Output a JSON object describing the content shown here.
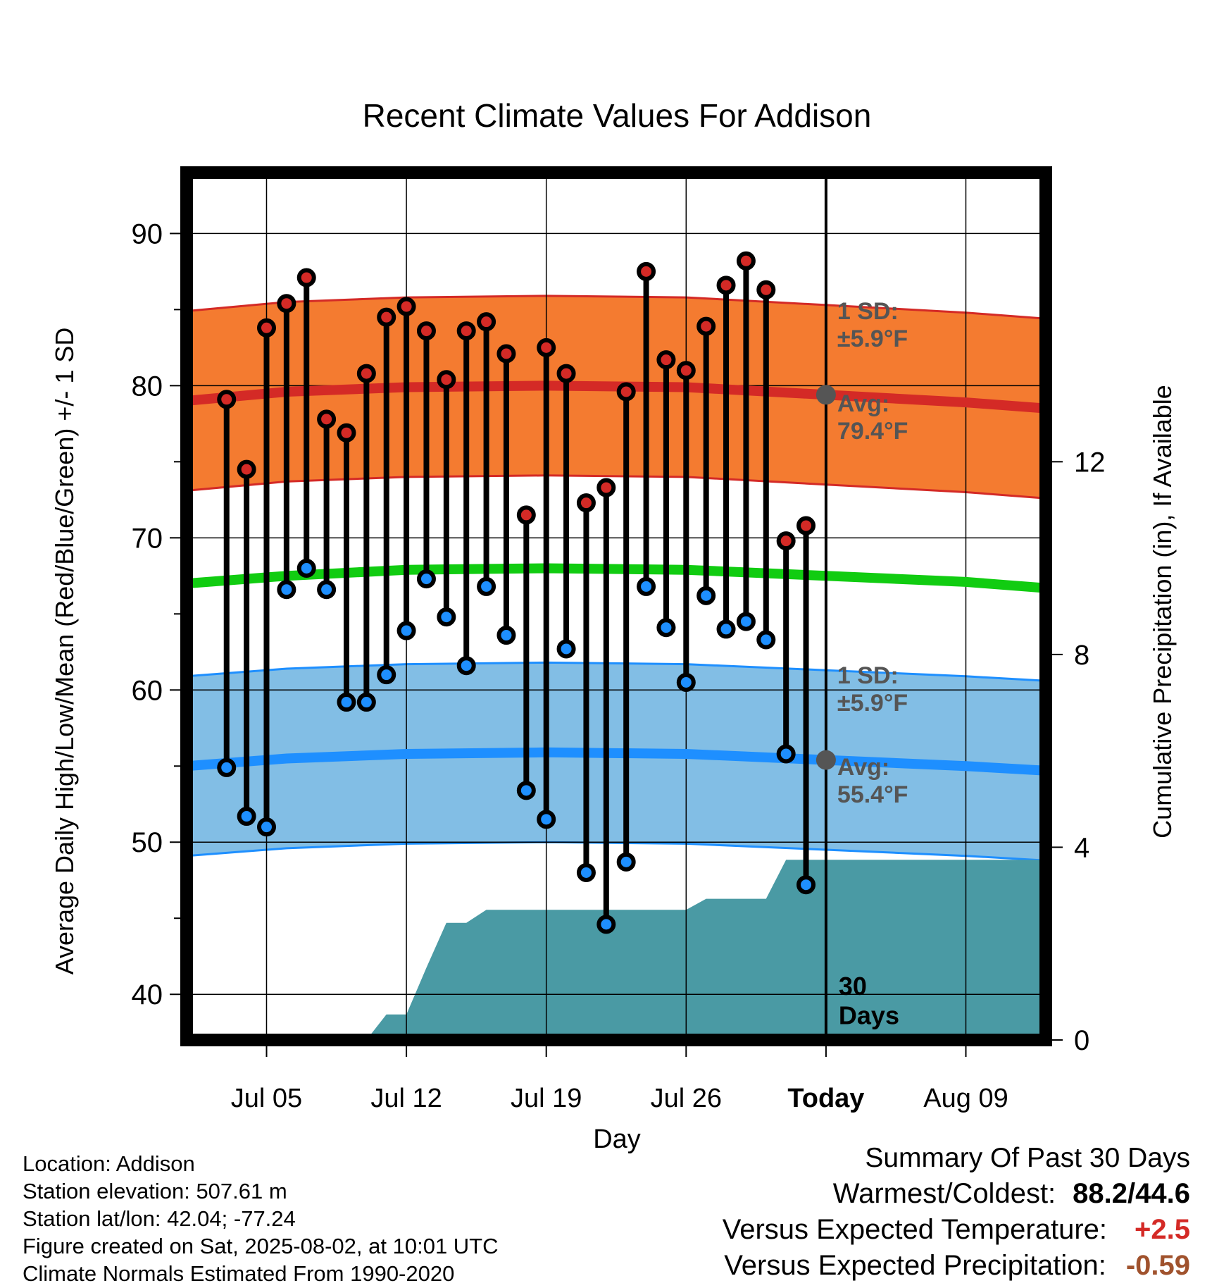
{
  "chart_data": {
    "type": "line",
    "title": "Recent Climate Values For Addison",
    "xlabel": "Day",
    "ylabel": "Average Daily High/Low/Mean (Red/Blue/Green) +/- 1 SD",
    "y2label": "Cumulative Precipitation (in), If Available",
    "ylim": [
      37,
      94
    ],
    "y2lim": [
      0,
      18
    ],
    "yticks": [
      40,
      50,
      60,
      70,
      80,
      90
    ],
    "y2ticks": [
      0,
      4,
      8,
      12
    ],
    "xlim": [
      "2025-07-01",
      "2025-08-13"
    ],
    "xticks": [
      {
        "date": "2025-07-05",
        "label": "Jul 05"
      },
      {
        "date": "2025-07-12",
        "label": "Jul 12"
      },
      {
        "date": "2025-07-19",
        "label": "Jul 19"
      },
      {
        "date": "2025-07-26",
        "label": "Jul 26"
      },
      {
        "date": "2025-08-02",
        "label": "Today"
      },
      {
        "date": "2025-08-09",
        "label": "Aug 09"
      }
    ],
    "grid": true,
    "today": "2025-08-02",
    "period_label": "30\nDays",
    "normal_x": [
      "2025-07-01",
      "2025-07-06",
      "2025-07-12",
      "2025-07-19",
      "2025-07-26",
      "2025-08-02",
      "2025-08-09",
      "2025-08-13"
    ],
    "normal_high": [
      79.0,
      79.6,
      79.9,
      80.0,
      79.9,
      79.4,
      78.9,
      78.5
    ],
    "normal_mean": [
      67.0,
      67.5,
      67.9,
      68.0,
      67.9,
      67.5,
      67.1,
      66.7
    ],
    "normal_low": [
      55.0,
      55.5,
      55.8,
      55.9,
      55.8,
      55.4,
      55.0,
      54.7
    ],
    "sd": 5.9,
    "annotations": {
      "high_sd": "1 SD:\n±5.9°F",
      "high_avg": "Avg:\n79.4°F",
      "low_sd": "1 SD:\n±5.9°F",
      "low_avg": "Avg:\n55.4°F"
    },
    "daily": {
      "dates": [
        "2025-07-03",
        "2025-07-04",
        "2025-07-05",
        "2025-07-06",
        "2025-07-07",
        "2025-07-08",
        "2025-07-09",
        "2025-07-10",
        "2025-07-11",
        "2025-07-12",
        "2025-07-13",
        "2025-07-14",
        "2025-07-15",
        "2025-07-16",
        "2025-07-17",
        "2025-07-18",
        "2025-07-19",
        "2025-07-20",
        "2025-07-21",
        "2025-07-22",
        "2025-07-23",
        "2025-07-24",
        "2025-07-25",
        "2025-07-26",
        "2025-07-27",
        "2025-07-28",
        "2025-07-29",
        "2025-07-30",
        "2025-07-31",
        "2025-08-01"
      ],
      "highs": [
        79.1,
        74.5,
        83.8,
        85.4,
        87.1,
        77.8,
        76.9,
        80.8,
        84.5,
        85.2,
        83.6,
        80.4,
        83.6,
        84.2,
        82.1,
        71.5,
        82.5,
        80.8,
        72.3,
        73.3,
        79.6,
        87.5,
        81.7,
        81.0,
        83.9,
        86.6,
        88.2,
        86.3,
        69.8,
        70.8
      ],
      "lows": [
        54.9,
        51.7,
        51.0,
        66.6,
        68.0,
        66.6,
        59.2,
        59.2,
        61.0,
        63.9,
        67.3,
        64.8,
        61.6,
        66.8,
        63.6,
        53.4,
        51.5,
        62.7,
        48.0,
        44.6,
        48.7,
        66.8,
        64.1,
        60.5,
        66.2,
        64.0,
        64.5,
        63.3,
        55.8,
        47.2
      ]
    },
    "precip_cumulative": {
      "dates": [
        "2025-07-01",
        "2025-07-06",
        "2025-07-07",
        "2025-07-08",
        "2025-07-09",
        "2025-07-10",
        "2025-07-11",
        "2025-07-12",
        "2025-07-13",
        "2025-07-14",
        "2025-07-15",
        "2025-07-16",
        "2025-07-17",
        "2025-07-18",
        "2025-07-19",
        "2025-07-20",
        "2025-07-21",
        "2025-07-22",
        "2025-07-23",
        "2025-07-24",
        "2025-07-25",
        "2025-07-26",
        "2025-07-27",
        "2025-07-28",
        "2025-07-29",
        "2025-07-30",
        "2025-07-31",
        "2025-08-02",
        "2025-08-13"
      ],
      "values": [
        0,
        0,
        0,
        0,
        0,
        0,
        0.53,
        0.53,
        1.5,
        2.43,
        2.43,
        2.7,
        2.7,
        2.7,
        2.7,
        2.7,
        2.7,
        2.7,
        2.7,
        2.7,
        2.7,
        2.7,
        2.93,
        2.93,
        2.93,
        2.93,
        3.74,
        3.74,
        3.74
      ]
    }
  },
  "info": {
    "location": "Location: Addison",
    "elevation": "Station elevation: 507.61 m",
    "latlon": "Station lat/lon: 42.04; -77.24",
    "created": "Figure created on Sat, 2025-08-02, at 10:01 UTC",
    "normals": "Climate Normals Estimated From 1990-2020"
  },
  "summary": {
    "heading": "Summary Of Past 30 Days",
    "warm_cold_label": "Warmest/Coldest:",
    "warm_cold_value": "88.2/44.6",
    "temp_label": "Versus Expected Temperature:",
    "temp_value": "+2.5",
    "precip_label": "Versus Expected Precipitation:",
    "precip_value": "-0.59"
  },
  "colors": {
    "high_band": "#F47B30",
    "high_line": "#D42A26",
    "low_band": "#82BEE5",
    "low_line": "#1E8FFF",
    "mean_line": "#11CC11",
    "precip": "#4A9AA4",
    "annotation": "#555555",
    "temp_anomaly": "#D42A26",
    "precip_anomaly": "#A0522D"
  }
}
